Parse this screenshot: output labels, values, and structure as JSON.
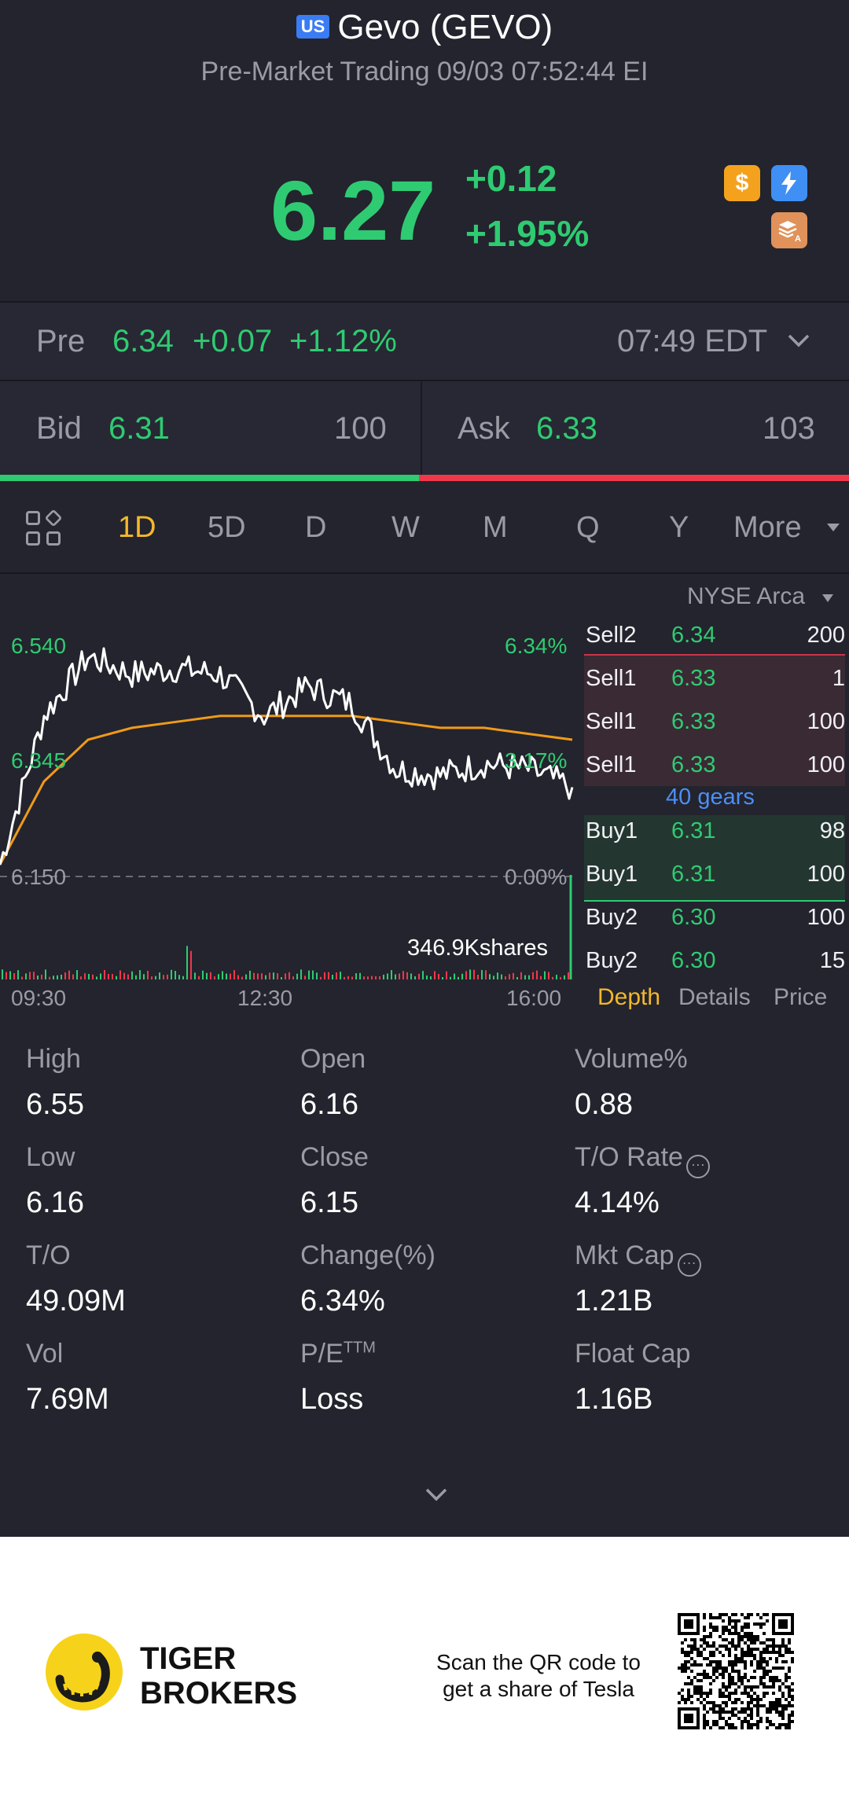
{
  "header": {
    "market_badge": "US",
    "title": "Gevo (GEVO)",
    "subtitle": "Pre-Market Trading 09/03 07:52:44 EI",
    "price": "6.27",
    "change": "+0.12",
    "change_pct": "+1.95%",
    "badges": [
      {
        "icon": "dollar-icon",
        "color": "#f4a21e"
      },
      {
        "icon": "lightning-icon",
        "color": "#3f8ff5"
      },
      {
        "icon": "stack-icon",
        "color": "#e0925a"
      }
    ]
  },
  "pre_market": {
    "label": "Pre",
    "price": "6.34",
    "change": "+0.07",
    "change_pct": "+1.12%",
    "time": "07:49 EDT"
  },
  "quote": {
    "bid_label": "Bid",
    "bid_price": "6.31",
    "bid_size": "100",
    "ask_label": "Ask",
    "ask_price": "6.33",
    "ask_size": "103"
  },
  "period_tabs": [
    "1D",
    "5D",
    "D",
    "W",
    "M",
    "Q",
    "Y",
    "More"
  ],
  "active_tab": "1D",
  "chart": {
    "exchange": "NYSE Arca",
    "y_left": [
      "6.540",
      "6.345",
      "6.150"
    ],
    "y_right": [
      "6.34%",
      "3.17%",
      "0.00%"
    ],
    "x_ticks": [
      "09:30",
      "12:30",
      "16:00"
    ],
    "volume_label": "346.9Kshares",
    "colors": {
      "price_line": "#ffffff",
      "avg_line": "#f09a1a",
      "up": "#2fcb72",
      "down": "#f0384b"
    }
  },
  "chart_data": {
    "type": "line",
    "x": [
      "09:30",
      "10:00",
      "10:30",
      "11:00",
      "11:30",
      "12:00",
      "12:30",
      "13:00",
      "13:30",
      "14:00",
      "14:30",
      "15:00",
      "15:30",
      "16:00"
    ],
    "series": [
      {
        "values": [
          6.17,
          6.42,
          6.52,
          6.49,
          6.5,
          6.49,
          6.42,
          6.47,
          6.44,
          6.33,
          6.32,
          6.34,
          6.33,
          6.3
        ]
      },
      {
        "values": [
          6.17,
          6.31,
          6.38,
          6.4,
          6.41,
          6.42,
          6.42,
          6.42,
          6.42,
          6.41,
          6.4,
          6.4,
          6.39,
          6.38
        ]
      }
    ],
    "ylim": [
      6.15,
      6.54
    ],
    "title": "",
    "xlabel": "",
    "ylabel": ""
  },
  "order_book": {
    "sells": [
      {
        "name": "Sell2",
        "price": "6.34",
        "qty": "200"
      },
      {
        "name": "Sell1",
        "price": "6.33",
        "qty": "1"
      },
      {
        "name": "Sell1",
        "price": "6.33",
        "qty": "100"
      },
      {
        "name": "Sell1",
        "price": "6.33",
        "qty": "100"
      }
    ],
    "gears": "40 gears",
    "buys": [
      {
        "name": "Buy1",
        "price": "6.31",
        "qty": "98"
      },
      {
        "name": "Buy1",
        "price": "6.31",
        "qty": "100"
      },
      {
        "name": "Buy2",
        "price": "6.30",
        "qty": "100"
      },
      {
        "name": "Buy2",
        "price": "6.30",
        "qty": "15"
      }
    ],
    "tabs": [
      "Depth",
      "Details",
      "Price"
    ]
  },
  "stats": [
    [
      {
        "label": "High",
        "value": "6.55"
      },
      {
        "label": "Open",
        "value": "6.16"
      },
      {
        "label": "Volume%",
        "value": "0.88"
      }
    ],
    [
      {
        "label": "Low",
        "value": "6.16"
      },
      {
        "label": "Close",
        "value": "6.15"
      },
      {
        "label": "T/O Rate",
        "value": "4.14%"
      }
    ],
    [
      {
        "label": "T/O",
        "value": "49.09M"
      },
      {
        "label": "Change(%)",
        "value": "6.34%"
      },
      {
        "label": "Mkt Cap",
        "value": "1.21B"
      }
    ],
    [
      {
        "label": "Vol",
        "value": "7.69M"
      },
      {
        "label": "P/E",
        "value": "Loss"
      },
      {
        "label": "Float Cap",
        "value": "1.16B"
      }
    ]
  ],
  "pe_superscript": "TTM",
  "footer": {
    "brand_line1": "TIGER",
    "brand_line2": "BROKERS",
    "scan_line1": "Scan the QR code to",
    "scan_line2": "get a share of Tesla"
  }
}
